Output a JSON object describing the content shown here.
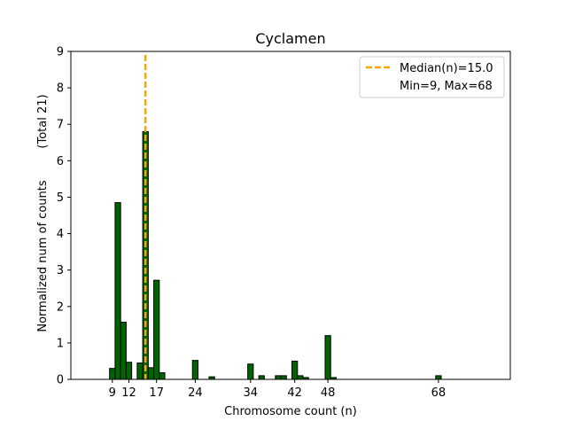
{
  "chart_data": {
    "type": "bar",
    "title": "Cyclamen",
    "xlabel": "Chromosome count (n)",
    "ylabel": "Normalized num of counts",
    "ylabel2": "(Total 21)",
    "xlim": [
      1.5,
      81
    ],
    "ylim": [
      0,
      9
    ],
    "xticks": [
      9,
      12,
      17,
      24,
      34,
      42,
      48,
      68
    ],
    "yticks": [
      0,
      1,
      2,
      3,
      4,
      5,
      6,
      7,
      8,
      9
    ],
    "bar_width": 1,
    "bar_color": "#006400",
    "bar_edge_color": "#000000",
    "bars": [
      {
        "x": 9,
        "y": 0.3
      },
      {
        "x": 10,
        "y": 4.85
      },
      {
        "x": 11,
        "y": 1.57
      },
      {
        "x": 12,
        "y": 0.47
      },
      {
        "x": 14,
        "y": 0.45
      },
      {
        "x": 15,
        "y": 6.8
      },
      {
        "x": 16,
        "y": 0.32
      },
      {
        "x": 17,
        "y": 2.72
      },
      {
        "x": 18,
        "y": 0.18
      },
      {
        "x": 24,
        "y": 0.52
      },
      {
        "x": 27,
        "y": 0.07
      },
      {
        "x": 34,
        "y": 0.42
      },
      {
        "x": 36,
        "y": 0.1
      },
      {
        "x": 39,
        "y": 0.1
      },
      {
        "x": 40,
        "y": 0.1
      },
      {
        "x": 42,
        "y": 0.5
      },
      {
        "x": 43,
        "y": 0.1
      },
      {
        "x": 44,
        "y": 0.05
      },
      {
        "x": 48,
        "y": 1.2
      },
      {
        "x": 49,
        "y": 0.05
      },
      {
        "x": 68,
        "y": 0.1
      }
    ],
    "median": {
      "value": 15.0,
      "color": "#FFA500"
    },
    "legend": {
      "position": "upper right",
      "entries": [
        "Median(n)=15.0",
        "Min=9, Max=68"
      ]
    }
  }
}
